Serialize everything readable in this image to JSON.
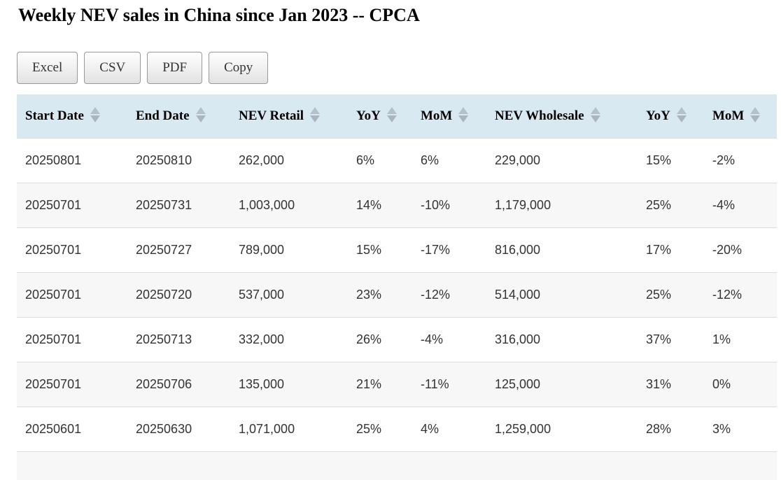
{
  "page": {
    "title": "Weekly NEV sales in China since Jan 2023 -- CPCA"
  },
  "toolbar": {
    "buttons": [
      "Excel",
      "CSV",
      "PDF",
      "Copy"
    ]
  },
  "table": {
    "columns": [
      "Start Date",
      "End Date",
      "NEV Retail",
      "YoY",
      "MoM",
      "NEV Wholesale",
      "YoY",
      "MoM"
    ],
    "rows": [
      [
        "20250801",
        "20250810",
        "262,000",
        "6%",
        "6%",
        "229,000",
        "15%",
        "-2%"
      ],
      [
        "20250701",
        "20250731",
        "1,003,000",
        "14%",
        "-10%",
        "1,179,000",
        "25%",
        "-4%"
      ],
      [
        "20250701",
        "20250727",
        "789,000",
        "15%",
        "-17%",
        "816,000",
        "17%",
        "-20%"
      ],
      [
        "20250701",
        "20250720",
        "537,000",
        "23%",
        "-12%",
        "514,000",
        "25%",
        "-12%"
      ],
      [
        "20250701",
        "20250713",
        "332,000",
        "26%",
        "-4%",
        "316,000",
        "37%",
        "1%"
      ],
      [
        "20250701",
        "20250706",
        "135,000",
        "21%",
        "-11%",
        "125,000",
        "31%",
        "0%"
      ],
      [
        "20250601",
        "20250630",
        "1,071,000",
        "25%",
        "4%",
        "1,259,000",
        "28%",
        "3%"
      ]
    ]
  },
  "icons": {
    "sort_up": "triangle-up",
    "sort_down": "triangle-down"
  },
  "colors": {
    "header_bg": "#d8e9f2",
    "row_stripe": "#f7f7f7",
    "row_border": "#dddddd",
    "sort_arrow": "#b0bbc1",
    "button_border": "#999999",
    "button_gradient_bottom": "#e2e2e2",
    "body_text": "#333333",
    "heading_text": "#000000"
  }
}
